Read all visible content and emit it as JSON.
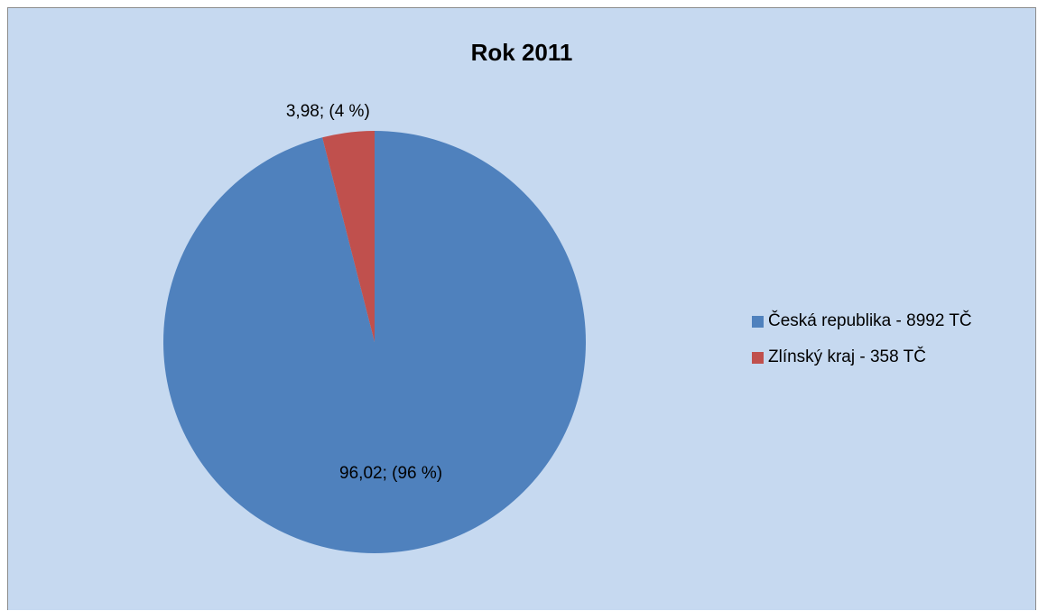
{
  "chart_data": {
    "type": "pie",
    "title": "Rok 2011",
    "slices": [
      {
        "label": "Česká republika - 8992 TČ",
        "value": 96.02,
        "data_label": "96,02; (96 %)",
        "color": "#4f81bd"
      },
      {
        "label": "Zlínský kraj - 358 TČ",
        "value": 3.98,
        "data_label": "3,98; (4 %)",
        "color": "#c0504d"
      }
    ],
    "start_angle": "12 o'clock, clockwise",
    "legend_position": "right",
    "background_color": "#c6d9f0"
  }
}
